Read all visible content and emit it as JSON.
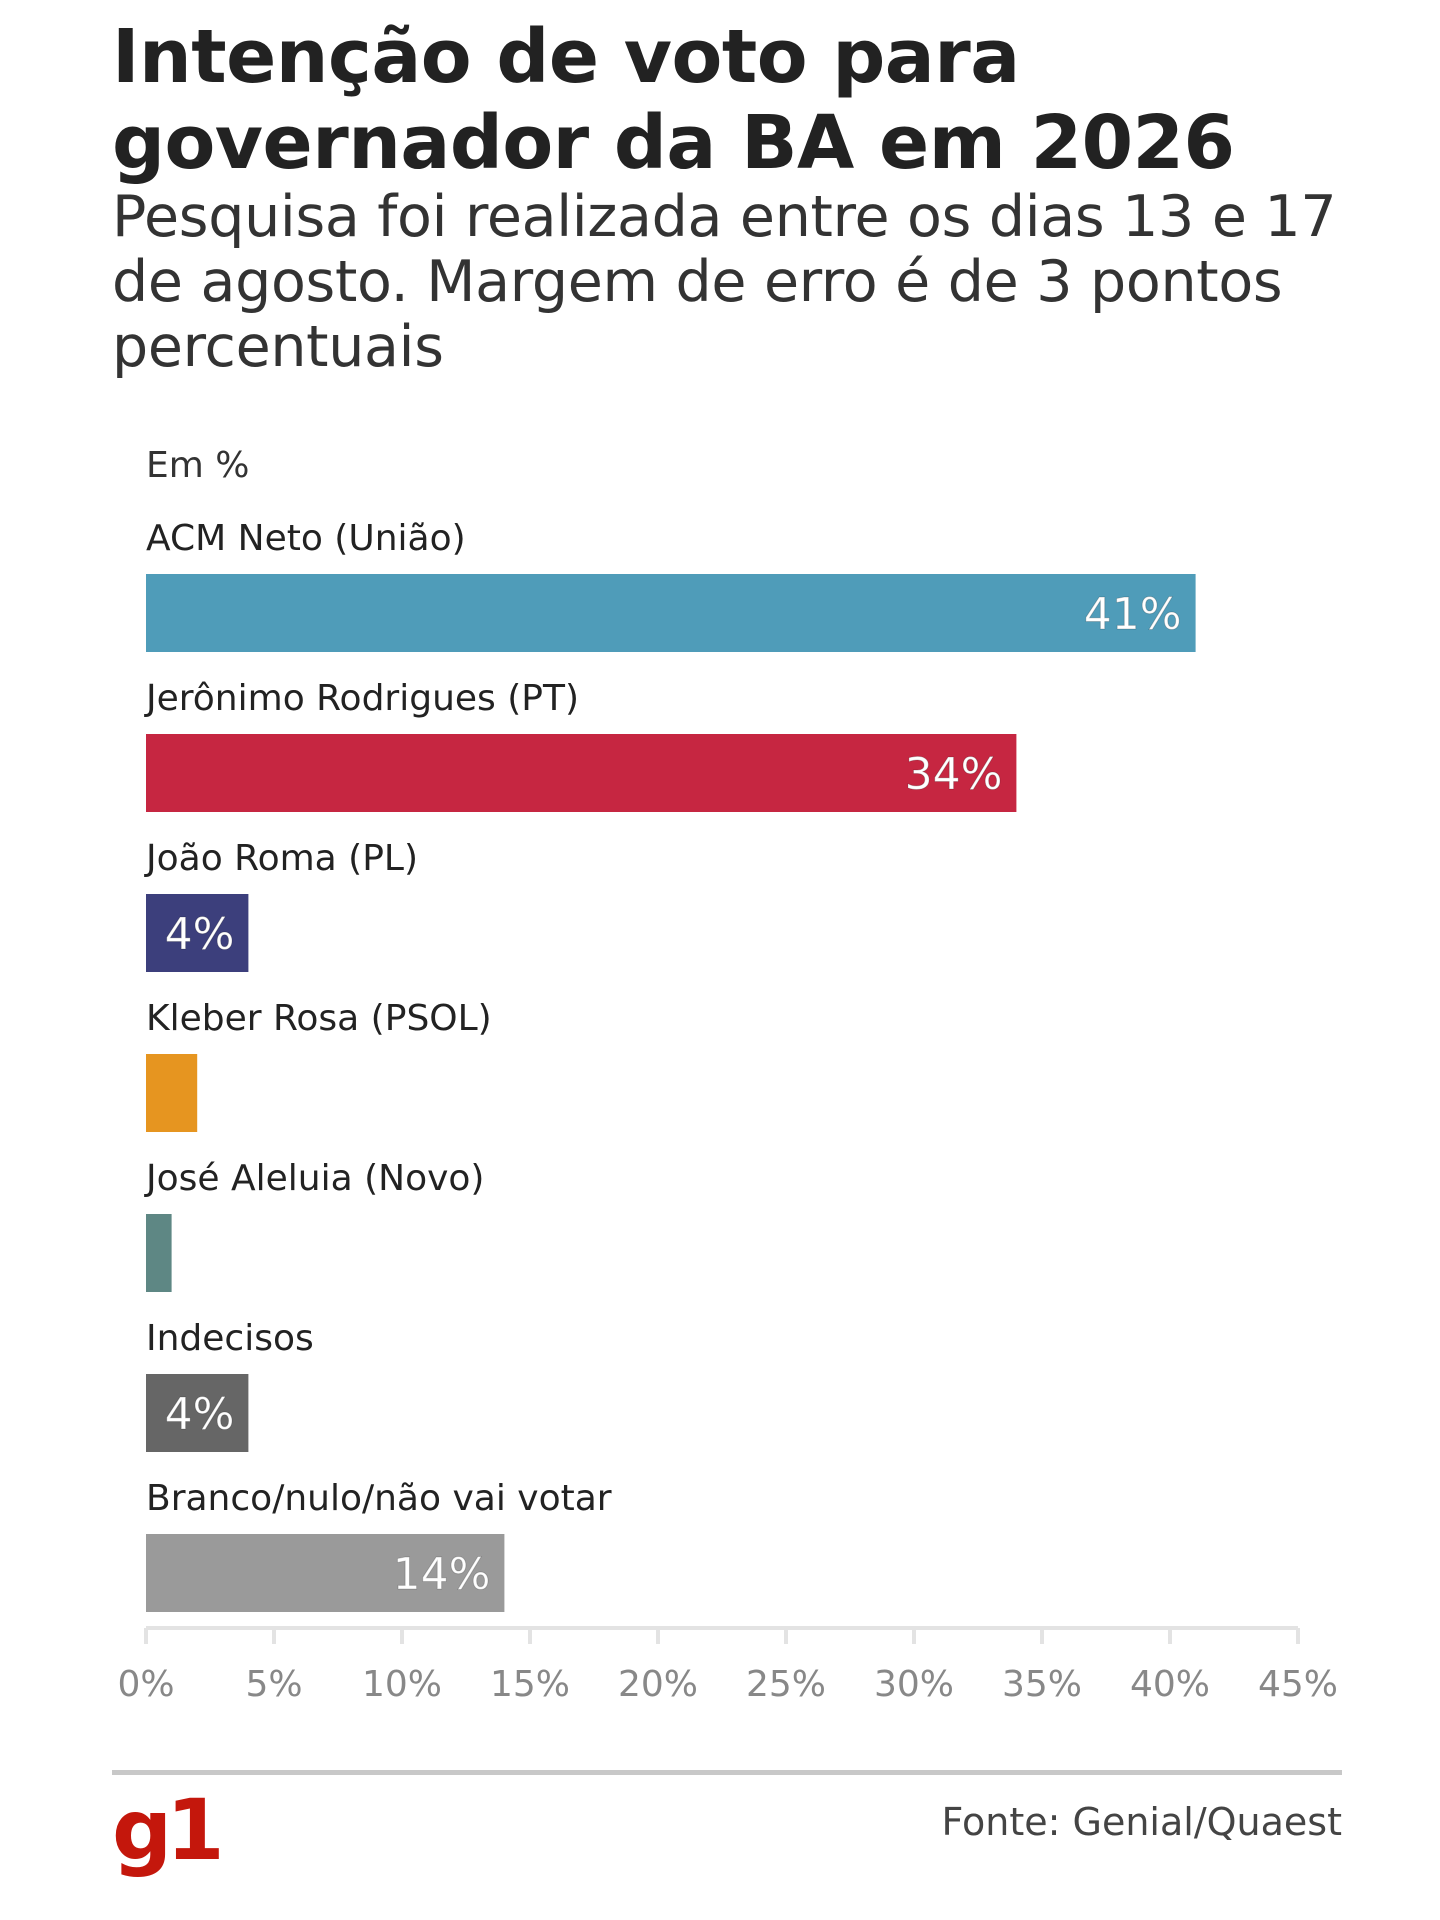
{
  "title": "Intenção de voto para governador da BA em 2026",
  "subtitle": "Pesquisa foi realizada entre os dias 13 e 17 de agosto. Margem de erro é de 3 pontos percentuais",
  "unit_label": "Em %",
  "source": "Fonte: Genial/Quaest",
  "logo": "g1",
  "chart_data": {
    "type": "bar",
    "orientation": "horizontal",
    "categories": [
      "ACM Neto (União)",
      "Jerônimo Rodrigues (PT)",
      "João Roma (PL)",
      "Kleber Rosa (PSOL)",
      "José Aleluia (Novo)",
      "Indecisos",
      "Branco/nulo/não vai votar"
    ],
    "values": [
      41,
      34,
      4,
      2,
      1,
      4,
      14
    ],
    "data_labels": [
      "41%",
      "34%",
      "4%",
      "",
      "",
      "4%",
      "14%"
    ],
    "colors": [
      "#4f9cb9",
      "#c62641",
      "#3c3f7c",
      "#e69520",
      "#5e8784",
      "#666666",
      "#9a9a9a"
    ],
    "xlim": [
      0,
      45
    ],
    "x_ticks": [
      0,
      5,
      10,
      15,
      20,
      25,
      30,
      35,
      40,
      45
    ],
    "x_tick_labels": [
      "0%",
      "5%",
      "10%",
      "15%",
      "20%",
      "25%",
      "30%",
      "35%",
      "40%",
      "45%"
    ],
    "grid": false,
    "legend": "none"
  }
}
